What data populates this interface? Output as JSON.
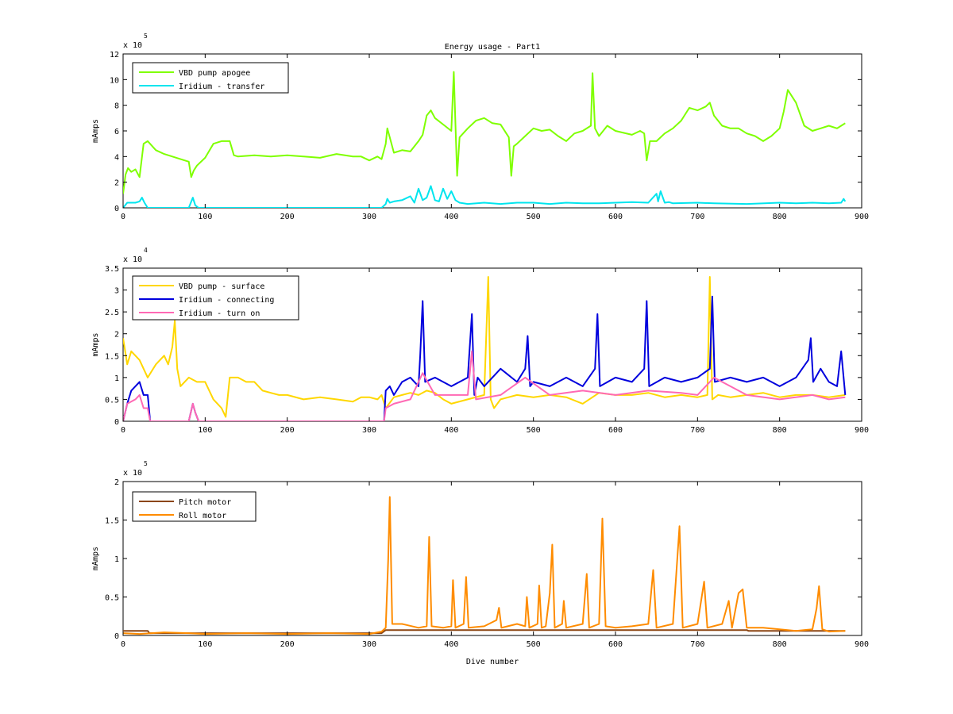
{
  "figure": {
    "title": "Energy usage - Part1",
    "xlabel": "Dive number"
  },
  "colors": {
    "vbd_apogee": "#7fff00",
    "iridium_transfer": "#00e5ee",
    "vbd_surface": "#ffd700",
    "iridium_connecting": "#0000dd",
    "iridium_turnon": "#ff69b4",
    "pitch_motor": "#8b4513",
    "roll_motor": "#ff8c00"
  },
  "chart_data": [
    {
      "type": "line",
      "title": "Energy usage - Part1",
      "xlabel": "",
      "ylabel": "mAmps",
      "xlim": [
        0,
        900
      ],
      "ylim": [
        0,
        1200000
      ],
      "x_ticks": [
        "0",
        "100",
        "200",
        "300",
        "400",
        "500",
        "600",
        "700",
        "800",
        "900"
      ],
      "y_ticks": [
        "0",
        "2",
        "4",
        "6",
        "8",
        "10",
        "12"
      ],
      "y_exponent_base": "x 10",
      "y_exponent_power": "5",
      "y_scale": 100000,
      "grid": false,
      "legend": "top-left",
      "series": [
        {
          "name": "VBD pump apogee",
          "color_key": "vbd_apogee",
          "x": [
            0,
            3,
            6,
            10,
            15,
            20,
            25,
            30,
            40,
            50,
            60,
            70,
            80,
            83,
            86,
            90,
            100,
            110,
            120,
            130,
            135,
            140,
            160,
            180,
            200,
            220,
            240,
            260,
            280,
            290,
            300,
            310,
            315,
            320,
            322,
            325,
            330,
            340,
            350,
            360,
            365,
            370,
            375,
            380,
            390,
            400,
            403,
            405,
            407,
            410,
            420,
            430,
            440,
            450,
            460,
            470,
            473,
            476,
            480,
            490,
            500,
            510,
            520,
            530,
            540,
            550,
            560,
            570,
            572,
            575,
            580,
            590,
            600,
            620,
            630,
            635,
            638,
            642,
            650,
            660,
            670,
            680,
            690,
            700,
            710,
            715,
            720,
            730,
            740,
            750,
            760,
            770,
            780,
            790,
            800,
            805,
            810,
            820,
            830,
            840,
            850,
            860,
            870,
            875,
            880
          ],
          "y": [
            110000,
            260000,
            310000,
            280000,
            300000,
            240000,
            500000,
            520000,
            450000,
            420000,
            400000,
            380000,
            360000,
            240000,
            290000,
            330000,
            390000,
            500000,
            520000,
            520000,
            410000,
            400000,
            410000,
            400000,
            410000,
            400000,
            390000,
            420000,
            400000,
            400000,
            370000,
            400000,
            380000,
            500000,
            620000,
            550000,
            430000,
            450000,
            440000,
            520000,
            570000,
            720000,
            760000,
            700000,
            650000,
            600000,
            1060000,
            650000,
            250000,
            550000,
            620000,
            680000,
            700000,
            660000,
            650000,
            550000,
            250000,
            480000,
            500000,
            560000,
            620000,
            600000,
            610000,
            560000,
            520000,
            580000,
            600000,
            640000,
            1050000,
            620000,
            560000,
            640000,
            600000,
            570000,
            600000,
            580000,
            370000,
            520000,
            520000,
            580000,
            620000,
            680000,
            780000,
            760000,
            790000,
            820000,
            720000,
            640000,
            620000,
            620000,
            580000,
            560000,
            520000,
            560000,
            620000,
            750000,
            920000,
            820000,
            640000,
            600000,
            620000,
            640000,
            620000,
            640000,
            660000
          ]
        },
        {
          "name": "Iridium - transfer",
          "color_key": "iridium_transfer",
          "x": [
            0,
            5,
            15,
            20,
            23,
            26,
            30,
            35,
            50,
            80,
            85,
            88,
            92,
            100,
            200,
            300,
            315,
            320,
            322,
            325,
            330,
            340,
            350,
            355,
            360,
            365,
            370,
            375,
            380,
            385,
            390,
            395,
            400,
            405,
            410,
            420,
            440,
            460,
            480,
            500,
            520,
            540,
            560,
            580,
            600,
            620,
            640,
            650,
            652,
            655,
            660,
            665,
            670,
            700,
            720,
            760,
            800,
            820,
            840,
            860,
            875,
            878,
            880
          ],
          "y": [
            0,
            40000,
            40000,
            50000,
            80000,
            40000,
            0,
            0,
            0,
            0,
            80000,
            20000,
            0,
            0,
            0,
            0,
            0,
            30000,
            70000,
            40000,
            50000,
            60000,
            90000,
            40000,
            150000,
            60000,
            80000,
            170000,
            60000,
            50000,
            150000,
            70000,
            130000,
            60000,
            40000,
            30000,
            40000,
            30000,
            40000,
            40000,
            30000,
            40000,
            35000,
            35000,
            40000,
            45000,
            40000,
            110000,
            50000,
            130000,
            40000,
            45000,
            35000,
            40000,
            35000,
            30000,
            40000,
            35000,
            40000,
            35000,
            40000,
            70000,
            50000
          ]
        }
      ]
    },
    {
      "type": "line",
      "title": "",
      "xlabel": "",
      "ylabel": "mAmps",
      "xlim": [
        0,
        900
      ],
      "ylim": [
        0,
        35000
      ],
      "x_ticks": [
        "0",
        "100",
        "200",
        "300",
        "400",
        "500",
        "600",
        "700",
        "800",
        "900"
      ],
      "y_ticks": [
        "0",
        "0.5",
        "1",
        "1.5",
        "2",
        "2.5",
        "3",
        "3.5"
      ],
      "y_exponent_base": "x 10",
      "y_exponent_power": "4",
      "y_scale": 10000,
      "grid": false,
      "legend": "top-left",
      "series": [
        {
          "name": "VBD pump - surface",
          "color_key": "vbd_surface",
          "x": [
            0,
            5,
            10,
            15,
            20,
            25,
            30,
            40,
            50,
            55,
            60,
            63,
            66,
            70,
            80,
            90,
            100,
            110,
            120,
            125,
            130,
            140,
            150,
            160,
            170,
            180,
            190,
            200,
            220,
            240,
            260,
            280,
            290,
            300,
            310,
            315,
            320,
            330,
            340,
            350,
            360,
            370,
            380,
            390,
            400,
            420,
            440,
            445,
            448,
            452,
            460,
            480,
            500,
            520,
            540,
            560,
            580,
            600,
            620,
            640,
            660,
            680,
            700,
            712,
            715,
            718,
            725,
            740,
            760,
            780,
            800,
            820,
            840,
            860,
            880
          ],
          "y": [
            19000,
            13000,
            16000,
            15000,
            14000,
            12000,
            10000,
            13000,
            15000,
            13000,
            17000,
            23000,
            12000,
            8000,
            10000,
            9000,
            9000,
            5000,
            3000,
            1000,
            10000,
            10000,
            9000,
            9000,
            7000,
            6500,
            6000,
            6000,
            5000,
            5500,
            5000,
            4500,
            5500,
            5500,
            5000,
            6000,
            3000,
            5500,
            6000,
            6500,
            6000,
            7000,
            6500,
            5000,
            4000,
            5000,
            6000,
            33000,
            5000,
            3000,
            5000,
            6000,
            5500,
            6000,
            5500,
            4000,
            6500,
            6000,
            6000,
            6500,
            5500,
            6000,
            5500,
            6000,
            33000,
            5000,
            6000,
            5500,
            6000,
            6500,
            5500,
            6000,
            6000,
            5500,
            6000
          ]
        },
        {
          "name": "Iridium - connecting",
          "color_key": "iridium_connecting",
          "x": [
            0,
            5,
            10,
            15,
            20,
            25,
            30,
            33,
            36,
            80,
            85,
            88,
            92,
            100,
            200,
            300,
            318,
            320,
            325,
            330,
            340,
            350,
            360,
            362,
            365,
            368,
            380,
            400,
            420,
            425,
            428,
            432,
            440,
            460,
            480,
            490,
            493,
            496,
            500,
            520,
            540,
            560,
            575,
            578,
            581,
            600,
            620,
            635,
            638,
            641,
            660,
            680,
            700,
            715,
            718,
            721,
            740,
            760,
            780,
            800,
            820,
            835,
            838,
            841,
            850,
            860,
            870,
            875,
            880
          ],
          "y": [
            0,
            4000,
            7000,
            8000,
            9000,
            6000,
            6000,
            0,
            0,
            0,
            4000,
            2000,
            0,
            0,
            0,
            0,
            0,
            7000,
            8000,
            6000,
            9000,
            10000,
            8000,
            15000,
            27500,
            9000,
            10000,
            8000,
            10000,
            24500,
            6000,
            10000,
            8000,
            12000,
            9000,
            12000,
            19500,
            8000,
            9000,
            8000,
            10000,
            8000,
            12000,
            24500,
            8000,
            10000,
            9000,
            12000,
            27500,
            8000,
            10000,
            9000,
            10000,
            12000,
            28500,
            9000,
            10000,
            9000,
            10000,
            8000,
            10000,
            14000,
            19000,
            9000,
            12000,
            9000,
            8000,
            16000,
            6000
          ]
        },
        {
          "name": "Iridium - turn on",
          "color_key": "iridium_turnon",
          "x": [
            0,
            5,
            15,
            20,
            25,
            30,
            33,
            36,
            80,
            85,
            88,
            92,
            100,
            200,
            300,
            318,
            320,
            330,
            350,
            365,
            380,
            400,
            420,
            425,
            430,
            460,
            490,
            520,
            560,
            600,
            640,
            680,
            700,
            720,
            760,
            800,
            840,
            860,
            880
          ],
          "y": [
            0,
            4000,
            5000,
            6000,
            3000,
            3000,
            0,
            0,
            0,
            4000,
            2000,
            0,
            0,
            0,
            0,
            0,
            3000,
            4000,
            5000,
            11000,
            6000,
            6000,
            6000,
            16000,
            5000,
            6000,
            10000,
            6000,
            7000,
            6000,
            7000,
            6500,
            6000,
            10000,
            6000,
            5000,
            6000,
            5000,
            5500
          ]
        }
      ]
    },
    {
      "type": "line",
      "title": "",
      "xlabel": "Dive number",
      "ylabel": "mAmps",
      "xlim": [
        0,
        900
      ],
      "ylim": [
        0,
        200000
      ],
      "x_ticks": [
        "0",
        "100",
        "200",
        "300",
        "400",
        "500",
        "600",
        "700",
        "800",
        "900"
      ],
      "y_ticks": [
        "0",
        "0.5",
        "1",
        "1.5",
        "2"
      ],
      "y_exponent_base": "x 10",
      "y_exponent_power": "5",
      "y_scale": 100000,
      "grid": false,
      "legend": "top-left",
      "series": [
        {
          "name": "Pitch motor",
          "color_key": "pitch_motor",
          "x": [
            0,
            30,
            32,
            100,
            200,
            300,
            315,
            320,
            400,
            500,
            600,
            700,
            760,
            762,
            800,
            880
          ],
          "y": [
            6000,
            6000,
            3000,
            3000,
            3000,
            3000,
            3000,
            7000,
            7000,
            7000,
            7000,
            7000,
            7000,
            6000,
            6000,
            6000
          ]
        },
        {
          "name": "Roll motor",
          "color_key": "roll_motor",
          "x": [
            0,
            20,
            50,
            80,
            100,
            150,
            200,
            250,
            300,
            315,
            320,
            323,
            325,
            328,
            340,
            360,
            370,
            373,
            376,
            390,
            400,
            402,
            405,
            415,
            418,
            421,
            440,
            455,
            458,
            461,
            480,
            490,
            492,
            495,
            505,
            507,
            510,
            515,
            520,
            523,
            526,
            535,
            537,
            540,
            560,
            565,
            568,
            580,
            584,
            588,
            600,
            620,
            640,
            646,
            650,
            670,
            678,
            682,
            700,
            708,
            712,
            730,
            738,
            742,
            750,
            755,
            760,
            780,
            800,
            820,
            840,
            845,
            848,
            852,
            860,
            880
          ],
          "y": [
            3000,
            2000,
            4000,
            3000,
            2000,
            3000,
            2000,
            3000,
            2000,
            5000,
            10000,
            98000,
            180000,
            15000,
            15000,
            10000,
            12000,
            128000,
            12000,
            10000,
            12000,
            72000,
            10000,
            15000,
            76000,
            10000,
            12000,
            20000,
            36000,
            10000,
            15000,
            12000,
            50000,
            10000,
            15000,
            65000,
            10000,
            12000,
            55000,
            118000,
            10000,
            15000,
            45000,
            10000,
            15000,
            80000,
            10000,
            15000,
            152000,
            12000,
            10000,
            12000,
            15000,
            85000,
            10000,
            15000,
            142000,
            10000,
            15000,
            70000,
            10000,
            15000,
            45000,
            10000,
            55000,
            60000,
            10000,
            10000,
            8000,
            6000,
            8000,
            35000,
            64000,
            8000,
            5000,
            6000
          ]
        }
      ]
    }
  ]
}
